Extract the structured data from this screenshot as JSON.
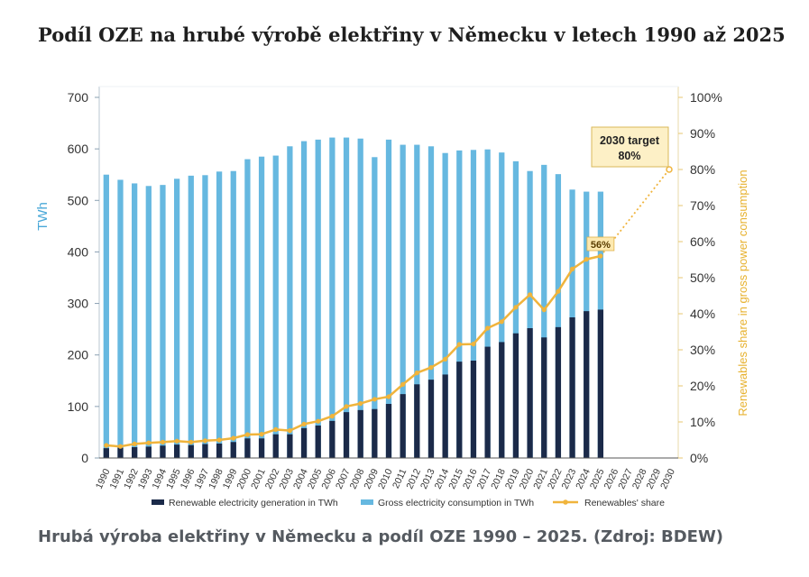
{
  "title": "Podíl OZE na hrubé výrobě elektřiny v Německu v letech 1990 až 2025",
  "caption": "Hrubá výroba elektřiny v Německu a podíl OZE 1990 – 2025. (Zdroj: BDEW)",
  "chart_data": {
    "type": "bar",
    "categories": [
      "1990",
      "1991",
      "1992",
      "1993",
      "1994",
      "1995",
      "1996",
      "1997",
      "1998",
      "1999",
      "2000",
      "2001",
      "2002",
      "2003",
      "2004",
      "2005",
      "2006",
      "2007",
      "2008",
      "2009",
      "2010",
      "2011",
      "2012",
      "2013",
      "2014",
      "2015",
      "2016",
      "2017",
      "2018",
      "2019",
      "2020",
      "2021",
      "2022",
      "2023",
      "2024",
      "2025",
      "2026",
      "2027",
      "2028",
      "2029",
      "2030"
    ],
    "ylabel": "TWh",
    "ylabel_right": "Renewables share in gross power consumption",
    "ylim": [
      0,
      700
    ],
    "ylim_right": [
      0,
      100
    ],
    "yticks": [
      "0",
      "100",
      "200",
      "300",
      "400",
      "500",
      "600",
      "700"
    ],
    "yticks_right": [
      "0%",
      "10%",
      "20%",
      "30%",
      "40%",
      "50%",
      "60%",
      "70%",
      "80%",
      "90%",
      "100%"
    ],
    "colors": {
      "renewable": "#1b2a49",
      "consumption": "#66b8e0",
      "share": "#f0b43c",
      "left_axis_text": "#4aa8d8",
      "right_axis_text": "#e7b230"
    },
    "series": [
      {
        "name": "Renewable electricity generation in TWh",
        "kind": "bar",
        "values": [
          19,
          20,
          21,
          22,
          24,
          26,
          25,
          27,
          28,
          31,
          38,
          38,
          46,
          46,
          58,
          63,
          72,
          89,
          93,
          95,
          105,
          124,
          143,
          152,
          162,
          187,
          189,
          216,
          225,
          242,
          252,
          234,
          254,
          273,
          285,
          288,
          null,
          null,
          null,
          null,
          null
        ]
      },
      {
        "name": "Gross electricity consumption in TWh",
        "kind": "bar",
        "values": [
          550,
          540,
          533,
          528,
          530,
          542,
          548,
          549,
          556,
          557,
          580,
          585,
          587,
          605,
          615,
          618,
          622,
          622,
          620,
          584,
          618,
          608,
          608,
          605,
          592,
          597,
          598,
          599,
          593,
          576,
          557,
          569,
          551,
          521,
          517,
          517,
          null,
          null,
          null,
          null,
          null
        ]
      },
      {
        "name": "Renewables' share",
        "kind": "line",
        "axis": "right",
        "values": [
          3.5,
          3.2,
          3.9,
          4.2,
          4.4,
          4.7,
          4.4,
          4.8,
          5.0,
          5.5,
          6.5,
          6.6,
          7.9,
          7.6,
          9.4,
          10.2,
          11.6,
          14.3,
          15.1,
          16.3,
          17.0,
          20.4,
          23.6,
          25.1,
          27.4,
          31.5,
          31.6,
          36.0,
          37.8,
          41.8,
          45.3,
          41.1,
          46.2,
          52.4,
          55.1,
          56.0,
          null,
          null,
          null,
          null,
          null
        ]
      }
    ],
    "target": {
      "year": "2030",
      "value": 80,
      "label_line1": "2030 target",
      "label_line2": "80%"
    },
    "annotation_2025": "56%"
  }
}
